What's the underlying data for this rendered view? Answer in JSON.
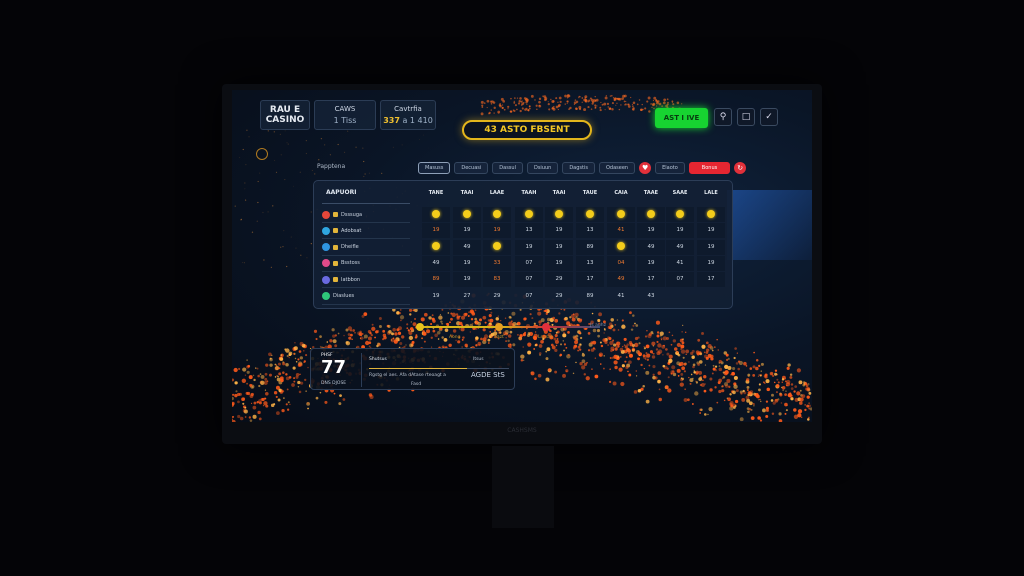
{
  "header": {
    "logo": [
      "RAU E",
      "CASINO"
    ],
    "stats": [
      {
        "label": "CAWS",
        "value": "1 Tiss"
      },
      {
        "label": "Cavtrfia",
        "value_highlight": "337",
        "value": "a 1 410"
      }
    ],
    "promo_label": "43 ASTO FBSENT",
    "cta_label": "AST I IVE",
    "icons": [
      "search-icon",
      "save-icon",
      "brush-icon"
    ]
  },
  "filters": {
    "section_label": "Papptena",
    "chips": [
      "Masuss",
      "Decuasi",
      "Dassul",
      "Dsiuun",
      "Dagstis",
      "Odaseen"
    ],
    "tag_chip": "Elaoto",
    "red_chip": "Bonus",
    "active_index": 0
  },
  "table": {
    "title": "AAPUORI",
    "columns": [
      "TANE",
      "TAAI",
      "LAAE",
      "TAAH",
      "TAAI",
      "TAUE",
      "CAIA",
      "TAAE",
      "SAAE",
      "LALE"
    ],
    "rows": [
      {
        "label": "Dsssuga",
        "color": "#e5473a",
        "cells": [
          "coin",
          "coin",
          "coin",
          "coin",
          "coin",
          "coin",
          "coin",
          "coin",
          "coin",
          "coin"
        ],
        "orange": []
      },
      {
        "label": "Adobsat",
        "color": "#2fa6e0",
        "cells": [
          "19",
          "19",
          "19",
          "13",
          "19",
          "13",
          "41",
          "19",
          "19",
          "19"
        ],
        "orange": [
          0,
          2,
          6
        ]
      },
      {
        "label": "Dheifle",
        "color": "#2f95e0",
        "cells": [
          "coin",
          "49",
          "coin",
          "19",
          "19",
          "89",
          "coin",
          "49",
          "49",
          "19"
        ],
        "orange": []
      },
      {
        "label": "Bsstoss",
        "color": "#e04a8a",
        "cells": [
          "49",
          "19",
          "33",
          "07",
          "19",
          "13",
          "04",
          "19",
          "41",
          "19"
        ],
        "orange": [
          2,
          6
        ]
      },
      {
        "label": "Iatbbon",
        "color": "#6a6ae0",
        "cells": [
          "89",
          "19",
          "83",
          "07",
          "29",
          "17",
          "49",
          "17",
          "07",
          "17"
        ],
        "orange": [
          0,
          2,
          6
        ]
      },
      {
        "label": "Diaslues",
        "color": "#2ec77a",
        "cells": [
          "19",
          "27",
          "29",
          "07",
          "29",
          "89",
          "41",
          "43",
          "",
          ""
        ],
        "orange": []
      }
    ]
  },
  "timeline": {
    "steps": [
      "Aong",
      "Sazt",
      "Lsosat"
    ],
    "end_label": "Js auhz",
    "colors": [
      "#e8c21c",
      "#e7a022",
      "#e0303c"
    ]
  },
  "summary": {
    "label": "PHSF",
    "value": "77",
    "sub": "DNS DJOSE",
    "title": "Shutsus",
    "mid": "Itsus",
    "desc": "Rgstg el aes. Afa dAtase rteoagt a",
    "foot": "Fasd",
    "stat": "AGDE StS",
    "progress": 0.7
  },
  "monitor": {
    "brand": "CASHSMS"
  }
}
